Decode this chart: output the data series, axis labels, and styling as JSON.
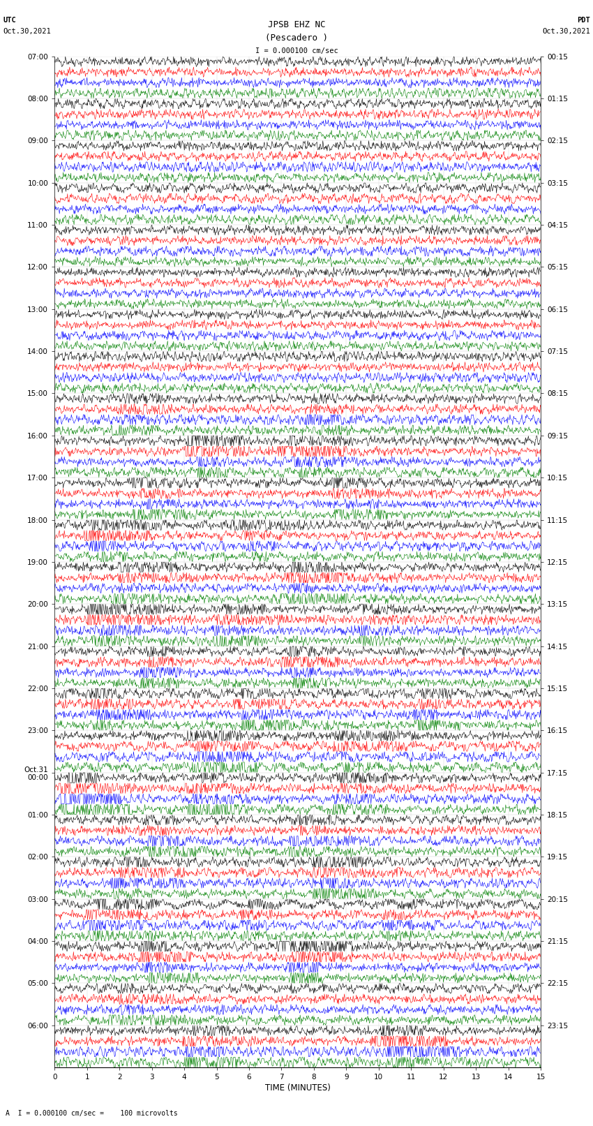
{
  "title_line1": "JPSB EHZ NC",
  "title_line2": "(Pescadero )",
  "scale_label": "I = 0.000100 cm/sec",
  "left_label_top": "UTC",
  "left_label_date": "Oct.30,2021",
  "right_label_top": "PDT",
  "right_label_date": "Oct.30,2021",
  "xlabel": "TIME (MINUTES)",
  "footer": "A  I = 0.000100 cm/sec =    100 microvolts",
  "xlim": [
    0,
    15
  ],
  "utc_hour_labels": [
    "07:00",
    "08:00",
    "09:00",
    "10:00",
    "11:00",
    "12:00",
    "13:00",
    "14:00",
    "15:00",
    "16:00",
    "17:00",
    "18:00",
    "19:00",
    "20:00",
    "21:00",
    "22:00",
    "23:00",
    "Oct.31\n00:00",
    "01:00",
    "02:00",
    "03:00",
    "04:00",
    "05:00",
    "06:00"
  ],
  "pdt_hour_labels": [
    "00:15",
    "01:15",
    "02:15",
    "03:15",
    "04:15",
    "05:15",
    "06:15",
    "07:15",
    "08:15",
    "09:15",
    "10:15",
    "11:15",
    "12:15",
    "13:15",
    "14:15",
    "15:15",
    "16:15",
    "17:15",
    "18:15",
    "19:15",
    "20:15",
    "21:15",
    "22:15",
    "23:15"
  ],
  "colors": [
    "black",
    "red",
    "blue",
    "green"
  ],
  "n_hours": 24,
  "traces_per_hour": 4,
  "fig_width": 8.5,
  "fig_height": 16.13,
  "bg_color": "white",
  "noise_seed": 42,
  "title_fontsize": 9,
  "tick_fontsize": 7.5,
  "footer_fontsize": 7
}
